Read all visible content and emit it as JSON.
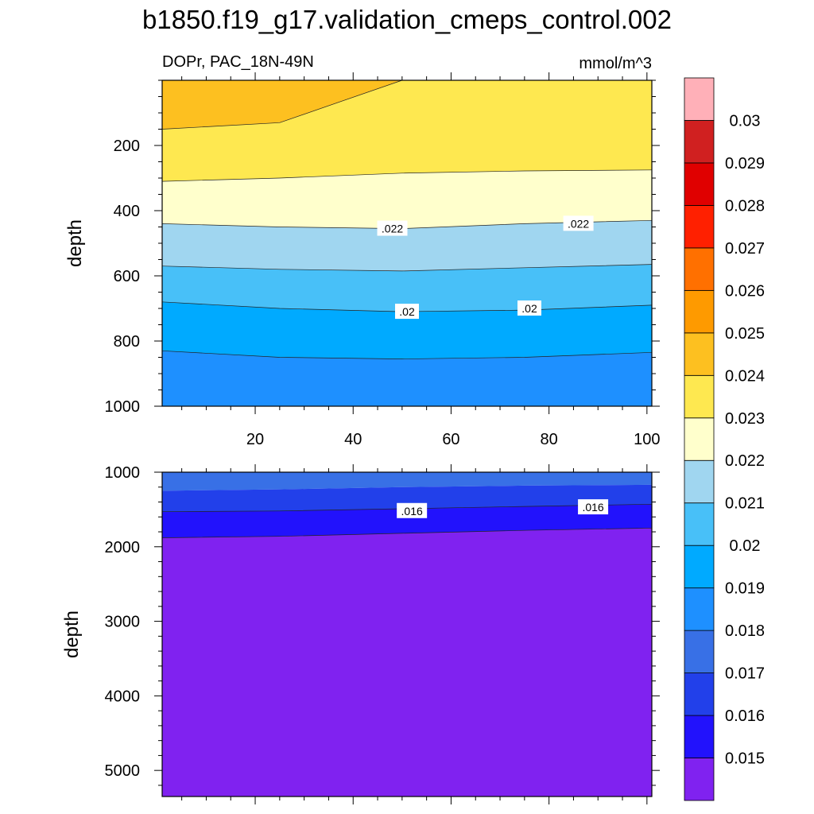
{
  "chart_data": {
    "type": "contour",
    "title": "b1850.f19_g17.validation_cmeps_control.002",
    "left_subtitle": "DOPr, PAC_18N-49N",
    "right_subtitle": "mmol/m^3",
    "ylabel": "depth",
    "xlim": [
      1,
      101
    ],
    "x_ticks": [
      20,
      40,
      60,
      80,
      100
    ],
    "colorbar": {
      "colors": [
        "#8022f0",
        "#2212fc",
        "#2240ea",
        "#3870e6",
        "#1e90ff",
        "#00aaff",
        "#48c0f8",
        "#a0d6f0",
        "#ffffcc",
        "#fee850",
        "#fdc020",
        "#fe9a00",
        "#ff7000",
        "#ff2000",
        "#e00000",
        "#d02020",
        "#ffb0b8"
      ],
      "labels": [
        "0.015",
        "0.016",
        "0.017",
        "0.018",
        "0.019",
        "0.02",
        "0.021",
        "0.022",
        "0.023",
        "0.024",
        "0.025",
        "0.026",
        "0.027",
        "0.028",
        "0.029",
        "0.03"
      ]
    },
    "panels": [
      {
        "name": "upper",
        "ylim": [
          0,
          1000
        ],
        "y_ticks": [
          200,
          400,
          600,
          800,
          1000
        ],
        "x_tick_labels_shown": true,
        "bands": [
          {
            "level": "0.024-0.025",
            "color": "#fdc020",
            "from_depth": [
              0,
              0,
              0,
              0,
              0
            ],
            "to_depth": [
              150,
              130,
              0,
              0,
              0
            ],
            "x": [
              1,
              25,
              50,
              75,
              101
            ]
          },
          {
            "level": "0.023-0.024",
            "color": "#fee850",
            "from_depth": [
              150,
              130,
              0,
              0,
              0
            ],
            "to_depth": [
              310,
              300,
              285,
              278,
              275
            ],
            "x": [
              1,
              25,
              50,
              75,
              101
            ]
          },
          {
            "level": "0.022-0.023",
            "color": "#ffffcc",
            "from_depth": [
              310,
              300,
              285,
              278,
              275
            ],
            "to_depth": [
              440,
              450,
              455,
              440,
              430
            ],
            "x": [
              1,
              25,
              50,
              75,
              101
            ]
          },
          {
            "level": "0.021-0.022",
            "color": "#a0d6f0",
            "from_depth": [
              440,
              450,
              455,
              440,
              430
            ],
            "to_depth": [
              570,
              580,
              585,
              575,
              565
            ],
            "x": [
              1,
              25,
              50,
              75,
              101
            ]
          },
          {
            "level": "0.020-0.021",
            "color": "#48c0f8",
            "from_depth": [
              570,
              580,
              585,
              575,
              565
            ],
            "to_depth": [
              680,
              700,
              710,
              705,
              690
            ],
            "x": [
              1,
              25,
              50,
              75,
              101
            ]
          },
          {
            "level": "0.019-0.020",
            "color": "#00aaff",
            "from_depth": [
              680,
              700,
              710,
              705,
              690
            ],
            "to_depth": [
              830,
              850,
              855,
              850,
              835
            ],
            "x": [
              1,
              25,
              50,
              75,
              101
            ]
          },
          {
            "level": "0.018-0.019",
            "color": "#1e90ff",
            "from_depth": [
              830,
              850,
              855,
              850,
              835
            ],
            "to_depth": [
              1000,
              1000,
              1000,
              1000,
              1000
            ],
            "x": [
              1,
              25,
              50,
              75,
              101
            ]
          }
        ],
        "contour_labels": [
          {
            "text": ".022",
            "x": 48,
            "depth": 455
          },
          {
            "text": ".022",
            "x": 86,
            "depth": 440
          },
          {
            "text": ".02",
            "x": 51,
            "depth": 710
          },
          {
            "text": ".02",
            "x": 76,
            "depth": 700
          }
        ]
      },
      {
        "name": "lower",
        "ylim": [
          1000,
          5350
        ],
        "y_ticks": [
          1000,
          2000,
          3000,
          4000,
          5000
        ],
        "x_tick_labels_shown": false,
        "bands": [
          {
            "level": "0.017-0.018",
            "color": "#3870e6",
            "from_depth": [
              1000,
              1000,
              1000,
              1000,
              1000
            ],
            "to_depth": [
              1250,
              1230,
              1200,
              1180,
              1170
            ],
            "x": [
              1,
              25,
              50,
              75,
              101
            ]
          },
          {
            "level": "0.016-0.017",
            "color": "#2240ea",
            "from_depth": [
              1250,
              1230,
              1200,
              1180,
              1170
            ],
            "to_depth": [
              1530,
              1520,
              1490,
              1460,
              1430
            ],
            "x": [
              1,
              25,
              50,
              75,
              101
            ]
          },
          {
            "level": "0.015-0.016",
            "color": "#2212fc",
            "from_depth": [
              1530,
              1520,
              1490,
              1460,
              1430
            ],
            "to_depth": [
              1880,
              1860,
              1820,
              1780,
              1750
            ],
            "x": [
              1,
              25,
              50,
              75,
              101
            ]
          },
          {
            "level": "<0.015",
            "color": "#8022f0",
            "from_depth": [
              1880,
              1860,
              1820,
              1780,
              1750
            ],
            "to_depth": [
              5350,
              5350,
              5350,
              5350,
              5350
            ],
            "x": [
              1,
              25,
              50,
              75,
              101
            ]
          }
        ],
        "contour_labels": [
          {
            "text": ".016",
            "x": 52,
            "depth": 1520
          },
          {
            "text": ".016",
            "x": 89,
            "depth": 1470
          }
        ]
      }
    ]
  }
}
